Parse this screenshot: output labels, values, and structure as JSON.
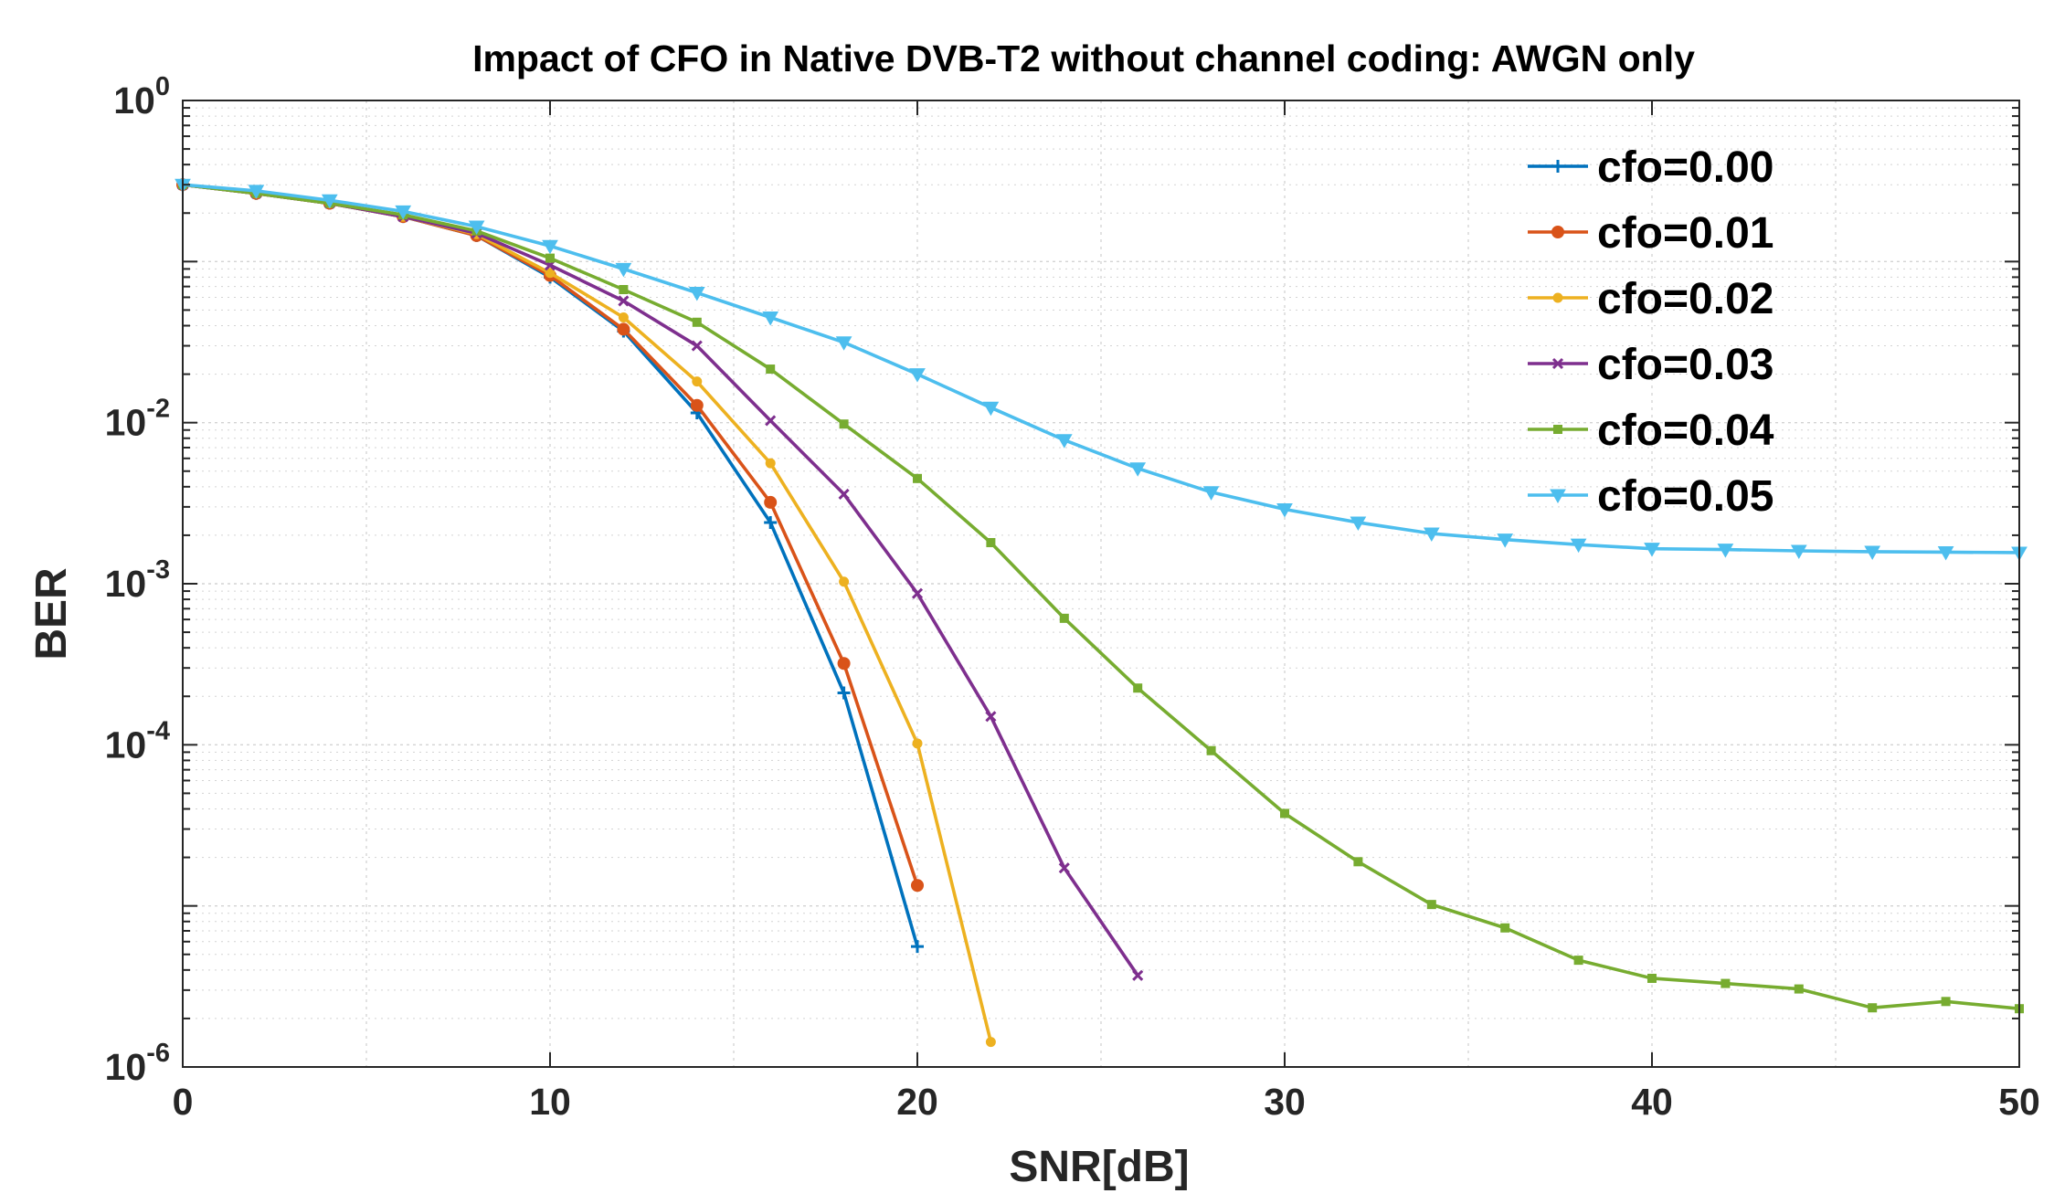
{
  "chart_data": {
    "type": "line",
    "title": "Impact of CFO in Native DVB-T2 without channel coding: AWGN only",
    "xlabel": "SNR[dB]",
    "ylabel": "BER",
    "xlim": [
      0,
      50
    ],
    "ylim": [
      1e-06,
      1
    ],
    "yscale": "log",
    "grid": true,
    "legend_position": "top-right",
    "x_ticks": [
      0,
      10,
      20,
      30,
      40,
      50
    ],
    "x_tick_labels": [
      "0",
      "10",
      "20",
      "30",
      "40",
      "50"
    ],
    "y_ticks": [
      {
        "value": 1,
        "base": "10",
        "exp": "0"
      },
      {
        "value": 0.01,
        "base": "10",
        "exp": "-2"
      },
      {
        "value": 0.001,
        "base": "10",
        "exp": "-3"
      },
      {
        "value": 0.0001,
        "base": "10",
        "exp": "-4"
      },
      {
        "value": 1e-06,
        "base": "10",
        "exp": "-6"
      }
    ],
    "series": [
      {
        "name": "cfo=0.00",
        "color": "#0072BD",
        "marker": "plus",
        "x": [
          0,
          2,
          4,
          6,
          8,
          10,
          12,
          14,
          16,
          18,
          20
        ],
        "y": [
          0.3,
          0.265,
          0.23,
          0.19,
          0.145,
          0.08,
          0.037,
          0.0115,
          0.0024,
          0.00021,
          5.6e-06
        ]
      },
      {
        "name": "cfo=0.01",
        "color": "#D95319",
        "marker": "circle",
        "x": [
          0,
          2,
          4,
          6,
          8,
          10,
          12,
          14,
          16,
          18,
          20
        ],
        "y": [
          0.3,
          0.265,
          0.23,
          0.19,
          0.145,
          0.082,
          0.038,
          0.0128,
          0.0032,
          0.00032,
          1.34e-05
        ]
      },
      {
        "name": "cfo=0.02",
        "color": "#EDB120",
        "marker": "dot",
        "x": [
          0,
          2,
          4,
          6,
          8,
          10,
          12,
          14,
          16,
          18,
          20,
          22
        ],
        "y": [
          0.3,
          0.265,
          0.23,
          0.19,
          0.148,
          0.085,
          0.045,
          0.018,
          0.0056,
          0.00103,
          0.000102,
          1.43e-06
        ]
      },
      {
        "name": "cfo=0.03",
        "color": "#7E2F8E",
        "marker": "x",
        "x": [
          0,
          2,
          4,
          6,
          8,
          10,
          12,
          14,
          16,
          18,
          20,
          22,
          24,
          26
        ],
        "y": [
          0.3,
          0.265,
          0.23,
          0.19,
          0.15,
          0.095,
          0.057,
          0.03,
          0.0103,
          0.0036,
          0.00087,
          0.00015,
          1.72e-05,
          3.7e-06
        ]
      },
      {
        "name": "cfo=0.04",
        "color": "#77AC30",
        "marker": "square",
        "x": [
          0,
          2,
          4,
          6,
          8,
          10,
          12,
          14,
          16,
          18,
          20,
          22,
          24,
          26,
          28,
          30,
          32,
          34,
          36,
          38,
          40,
          42,
          44,
          46,
          48,
          50
        ],
        "y": [
          0.3,
          0.265,
          0.23,
          0.195,
          0.155,
          0.105,
          0.067,
          0.042,
          0.0215,
          0.0098,
          0.0045,
          0.0018,
          0.00061,
          0.000225,
          9.2e-05,
          3.75e-05,
          1.88e-05,
          1.02e-05,
          7.3e-06,
          4.6e-06,
          3.55e-06,
          3.3e-06,
          3.05e-06,
          2.33e-06,
          2.55e-06,
          2.3e-06
        ]
      },
      {
        "name": "cfo=0.05",
        "color": "#4DBEEE",
        "marker": "triangle",
        "x": [
          0,
          2,
          4,
          6,
          8,
          10,
          12,
          14,
          16,
          18,
          20,
          22,
          24,
          26,
          28,
          30,
          32,
          34,
          36,
          38,
          40,
          42,
          44,
          46,
          48,
          50
        ],
        "y": [
          0.3,
          0.275,
          0.24,
          0.205,
          0.165,
          0.125,
          0.09,
          0.064,
          0.045,
          0.0315,
          0.02,
          0.0124,
          0.0078,
          0.0052,
          0.0037,
          0.0029,
          0.0024,
          0.00205,
          0.00188,
          0.00175,
          0.00165,
          0.00163,
          0.0016,
          0.00158,
          0.00157,
          0.00156
        ]
      }
    ]
  }
}
